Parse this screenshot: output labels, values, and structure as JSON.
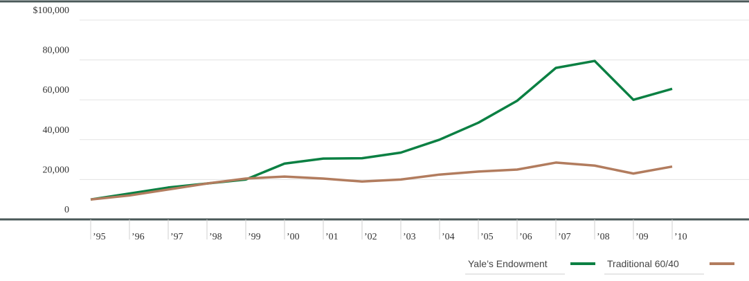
{
  "chart_data": {
    "type": "line",
    "categories": [
      "’95",
      "’96",
      "’97",
      "’98",
      "’99",
      "’00",
      "’01",
      "’02",
      "’03",
      "’04",
      "’05",
      "’06",
      "’07",
      "’08",
      "’09",
      "’10"
    ],
    "series": [
      {
        "name": "Yale’s Endowment",
        "color": "#0b8043",
        "values": [
          10000,
          13000,
          16000,
          18000,
          20000,
          28000,
          30500,
          30700,
          33500,
          40000,
          48500,
          59500,
          76000,
          79500,
          60000,
          65500
        ]
      },
      {
        "name": "Traditional 60/40",
        "color": "#b27c5e",
        "values": [
          10000,
          12000,
          15000,
          18000,
          20500,
          21500,
          20500,
          19000,
          20000,
          22500,
          24000,
          25000,
          28500,
          27000,
          23000,
          26500
        ]
      }
    ],
    "ylim": [
      0,
      100000
    ],
    "yticks": [
      0,
      {
        "value": 20000,
        "label": "20,000"
      },
      {
        "value": 40000,
        "label": "40,000"
      },
      {
        "value": 60000,
        "label": "60,000"
      },
      {
        "value": 80000,
        "label": "80,000"
      },
      {
        "value": 100000,
        "label": "$100,000"
      }
    ],
    "grid": true,
    "legend": "bottom-right"
  }
}
